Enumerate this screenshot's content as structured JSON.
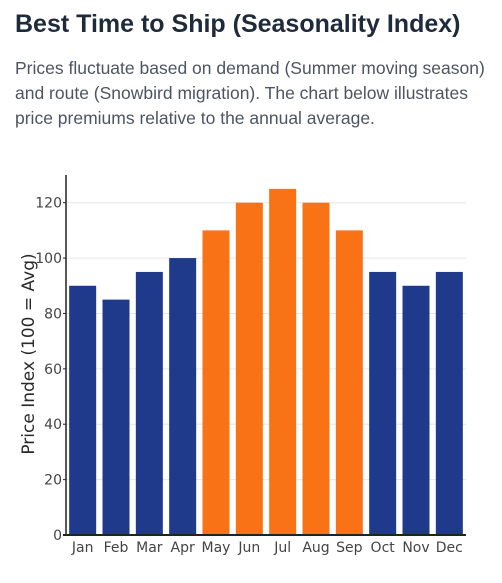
{
  "header": {
    "title": "Best Time to Ship (Seasonality Index)",
    "description": "Prices fluctuate based on demand (Summer moving season) and route (Snowbird migration). The chart below illustrates price premiums relative to the annual average."
  },
  "chart_data": {
    "type": "bar",
    "title": "",
    "xlabel": "",
    "ylabel": "Price Index (100 = Avg)",
    "categories": [
      "Jan",
      "Feb",
      "Mar",
      "Apr",
      "May",
      "Jun",
      "Jul",
      "Aug",
      "Sep",
      "Oct",
      "Nov",
      "Dec"
    ],
    "values": [
      90,
      85,
      95,
      100,
      110,
      120,
      125,
      120,
      110,
      95,
      90,
      95
    ],
    "bar_colors": [
      "#1f3a8a",
      "#1f3a8a",
      "#1f3a8a",
      "#1f3a8a",
      "#f97316",
      "#f97316",
      "#f97316",
      "#f97316",
      "#f97316",
      "#1f3a8a",
      "#1f3a8a",
      "#1f3a8a"
    ],
    "ylim": [
      0,
      130
    ],
    "yticks": [
      0,
      20,
      40,
      60,
      80,
      100,
      120
    ],
    "grid": true,
    "legend": "none"
  },
  "colors": {
    "peak": "#f97316",
    "offpeak": "#1f3a8a",
    "grid": "#e6e6e6",
    "axis": "#222222"
  }
}
